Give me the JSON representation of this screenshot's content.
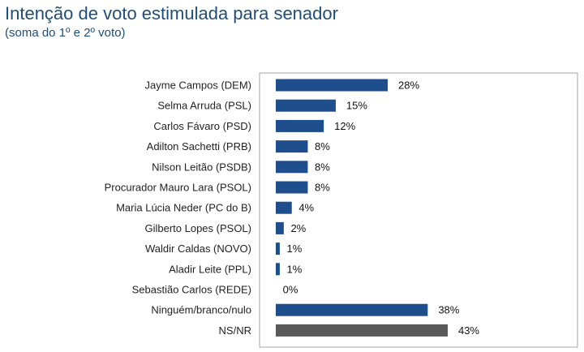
{
  "header": {
    "title": "Intenção de voto estimulada para senador",
    "subtitle": "(soma do 1º e 2º voto)"
  },
  "colors": {
    "bar_primary": "#1f4e8c",
    "bar_other": "#595959",
    "frame": "#a6a6a6"
  },
  "chart_data": {
    "type": "bar",
    "orientation": "horizontal",
    "title": "Intenção de voto estimulada para senador",
    "subtitle": "(soma do 1º e 2º voto)",
    "xlabel": "",
    "ylabel": "",
    "unit": "%",
    "xlim": [
      0,
      50
    ],
    "grid": false,
    "legend": "none",
    "categories": [
      "Jayme Campos (DEM)",
      "Selma Arruda (PSL)",
      "Carlos Fávaro (PSD)",
      "Adilton Sachetti (PRB)",
      "Nilson Leitão (PSDB)",
      "Procurador Mauro Lara (PSOL)",
      "Maria Lúcia Neder (PC do B)",
      "Gilberto Lopes (PSOL)",
      "Waldir Caldas (NOVO)",
      "Aladir Leite (PPL)",
      "Sebastião Carlos (REDE)",
      "Ninguém/branco/nulo",
      "NS/NR"
    ],
    "values": [
      28,
      15,
      12,
      8,
      8,
      8,
      4,
      2,
      1,
      1,
      0,
      38,
      43
    ],
    "value_labels": [
      "28%",
      "15%",
      "12%",
      "8%",
      "8%",
      "8%",
      "4%",
      "2%",
      "1%",
      "1%",
      "0%",
      "38%",
      "43%"
    ],
    "bar_colors": [
      "#1f4e8c",
      "#1f4e8c",
      "#1f4e8c",
      "#1f4e8c",
      "#1f4e8c",
      "#1f4e8c",
      "#1f4e8c",
      "#1f4e8c",
      "#1f4e8c",
      "#1f4e8c",
      "#1f4e8c",
      "#1f4e8c",
      "#595959"
    ]
  }
}
